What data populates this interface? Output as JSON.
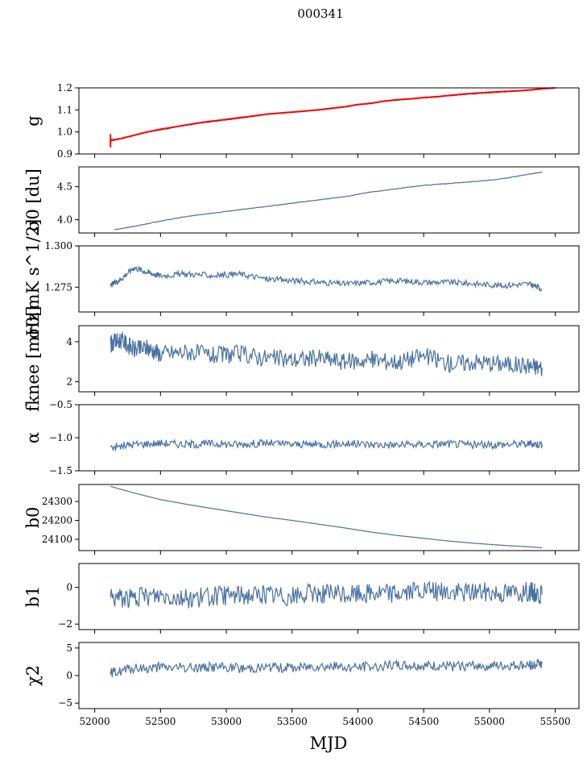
{
  "figure": {
    "title": "000341",
    "xlabel": "MJD"
  },
  "colors": {
    "series": "#4a71a1",
    "fit": "#ff0000"
  },
  "chart_data": [
    {
      "type": "line",
      "ylabel": "g",
      "ylim": [
        0.9,
        1.2
      ],
      "yticks": [
        "0.9",
        "1.0",
        "1.1",
        "1.2"
      ],
      "yticks_v": [
        0.9,
        1.0,
        1.1,
        1.2
      ],
      "series": [
        {
          "x": [
            52120,
            52200,
            52300,
            52400,
            52500,
            52600,
            52800,
            53000,
            53200,
            53300,
            53500,
            53700,
            53900,
            54000,
            54100,
            54200,
            54300,
            54400,
            54500,
            54600,
            54700,
            54800,
            55000,
            55200,
            55300,
            55400
          ],
          "y": [
            0.965,
            0.97,
            0.985,
            1.0,
            1.01,
            1.02,
            1.04,
            1.055,
            1.07,
            1.08,
            1.09,
            1.1,
            1.115,
            1.125,
            1.13,
            1.14,
            1.145,
            1.15,
            1.155,
            1.16,
            1.165,
            1.17,
            1.178,
            1.185,
            1.19,
            1.195
          ]
        },
        {
          "name": "",
          "fit": true,
          "x": [
            52120,
            52200,
            52300,
            52400,
            52500,
            52600,
            52800,
            53000,
            53200,
            53300,
            53500,
            53700,
            53900,
            54000,
            54100,
            54200,
            54300,
            54400,
            54500,
            54600,
            54700,
            54800,
            55000,
            55200,
            55300,
            55400,
            55500
          ],
          "y": [
            0.96,
            0.97,
            0.985,
            1.0,
            1.012,
            1.022,
            1.042,
            1.057,
            1.072,
            1.08,
            1.09,
            1.1,
            1.114,
            1.124,
            1.13,
            1.14,
            1.146,
            1.15,
            1.156,
            1.16,
            1.166,
            1.172,
            1.18,
            1.186,
            1.19,
            1.196,
            1.2
          ]
        }
      ]
    },
    {
      "type": "line",
      "ylabel": "σ0 [du]",
      "ylim": [
        3.8,
        4.8
      ],
      "yticks": [
        "4.0",
        "4.5"
      ],
      "yticks_v": [
        4.0,
        4.5
      ],
      "series": [
        {
          "x": [
            52150,
            52300,
            52500,
            52700,
            52900,
            53100,
            53300,
            53500,
            53700,
            53900,
            54100,
            54300,
            54500,
            54700,
            54900,
            55100,
            55300,
            55400
          ],
          "y": [
            3.85,
            3.9,
            3.98,
            4.05,
            4.1,
            4.15,
            4.2,
            4.25,
            4.3,
            4.35,
            4.42,
            4.47,
            4.52,
            4.55,
            4.58,
            4.62,
            4.69,
            4.72
          ]
        }
      ]
    },
    {
      "type": "line",
      "ylabel": "σ0[mK s^1/2]",
      "ylim": [
        1.26,
        1.3
      ],
      "yticks": [
        "1.275",
        "1.300"
      ],
      "yticks_v": [
        1.275,
        1.3
      ],
      "series": [
        {
          "x": [
            52120,
            52200,
            52300,
            52400,
            52500,
            52700,
            52900,
            53100,
            53300,
            53500,
            53700,
            53900,
            54100,
            54300,
            54500,
            54700,
            54900,
            55100,
            55300,
            55400
          ],
          "y": [
            1.276,
            1.28,
            1.287,
            1.284,
            1.282,
            1.283,
            1.282,
            1.283,
            1.28,
            1.279,
            1.278,
            1.277,
            1.278,
            1.279,
            1.278,
            1.278,
            1.277,
            1.276,
            1.277,
            1.274
          ]
        }
      ]
    },
    {
      "type": "line",
      "ylabel": "fknee [mHz]",
      "ylim": [
        1.5,
        4.8
      ],
      "yticks": [
        "2",
        "4"
      ],
      "yticks_v": [
        2,
        4
      ],
      "series": [
        {
          "x": [
            52120,
            52200,
            52300,
            52400,
            52500,
            52700,
            52900,
            53100,
            53300,
            53500,
            53700,
            53900,
            54100,
            54300,
            54500,
            54700,
            54900,
            55100,
            55300,
            55400
          ],
          "y": [
            3.9,
            4.1,
            3.6,
            3.7,
            3.4,
            3.5,
            3.3,
            3.4,
            3.2,
            3.1,
            3.2,
            3.0,
            3.1,
            3.0,
            3.3,
            2.9,
            3.0,
            2.9,
            2.8,
            2.7
          ]
        }
      ]
    },
    {
      "type": "line",
      "ylabel": "α",
      "ylim": [
        -1.5,
        -0.5
      ],
      "yticks": [
        "−1.5",
        "−1.0",
        "−0.5"
      ],
      "yticks_v": [
        -1.5,
        -1.0,
        -0.5
      ],
      "series": [
        {
          "x": [
            52120,
            52300,
            52500,
            52700,
            52900,
            53100,
            53300,
            53500,
            53700,
            53900,
            54100,
            54300,
            54500,
            54700,
            54900,
            55100,
            55300,
            55400
          ],
          "y": [
            -1.15,
            -1.1,
            -1.08,
            -1.1,
            -1.09,
            -1.1,
            -1.08,
            -1.1,
            -1.1,
            -1.09,
            -1.1,
            -1.11,
            -1.1,
            -1.09,
            -1.11,
            -1.1,
            -1.09,
            -1.1
          ]
        }
      ]
    },
    {
      "type": "line",
      "ylabel": "b0",
      "ylim": [
        24040,
        24390
      ],
      "yticks": [
        "24100",
        "24200",
        "24300"
      ],
      "yticks_v": [
        24100,
        24200,
        24300
      ],
      "series": [
        {
          "x": [
            52120,
            52300,
            52500,
            52700,
            52900,
            53100,
            53300,
            53500,
            53700,
            53900,
            54100,
            54300,
            54500,
            54700,
            54900,
            55100,
            55300,
            55400
          ],
          "y": [
            24380,
            24345,
            24310,
            24285,
            24262,
            24240,
            24218,
            24200,
            24180,
            24160,
            24138,
            24120,
            24105,
            24090,
            24078,
            24068,
            24060,
            24055
          ]
        }
      ]
    },
    {
      "type": "line",
      "ylabel": "b1",
      "ylim": [
        -2.3,
        1.3
      ],
      "yticks": [
        "−2",
        "0"
      ],
      "yticks_v": [
        -2,
        0
      ],
      "series": [
        {
          "x": [
            52120,
            52300,
            52500,
            52700,
            52900,
            53100,
            53300,
            53500,
            53700,
            53900,
            54100,
            54300,
            54500,
            54700,
            54900,
            55100,
            55300,
            55400
          ],
          "y": [
            -0.5,
            -0.6,
            -0.4,
            -0.6,
            -0.5,
            -0.4,
            -0.4,
            -0.5,
            -0.3,
            -0.4,
            -0.3,
            -0.3,
            -0.2,
            -0.3,
            -0.2,
            -0.3,
            -0.2,
            -0.4
          ]
        }
      ]
    },
    {
      "type": "line",
      "ylabel": "χ2",
      "ylim": [
        -6,
        6
      ],
      "yticks": [
        "−5",
        "0",
        "5"
      ],
      "yticks_v": [
        -5,
        0,
        5
      ],
      "series": [
        {
          "x": [
            52120,
            52300,
            52500,
            52700,
            52900,
            53100,
            53300,
            53500,
            53700,
            53900,
            54100,
            54300,
            54500,
            54700,
            54900,
            55100,
            55300,
            55400
          ],
          "y": [
            0.5,
            1.2,
            1.5,
            1.4,
            1.6,
            1.3,
            1.5,
            1.4,
            1.8,
            1.5,
            1.6,
            1.9,
            1.7,
            1.6,
            1.8,
            1.7,
            1.9,
            2.2
          ]
        }
      ]
    }
  ],
  "xaxis": {
    "xlim": [
      51880,
      55680
    ],
    "ticks": [
      52000,
      52500,
      53000,
      53500,
      54000,
      54500,
      55000,
      55500
    ],
    "tick_labels": [
      "52000",
      "52500",
      "53000",
      "53500",
      "54000",
      "54500",
      "55000",
      "55500"
    ]
  }
}
